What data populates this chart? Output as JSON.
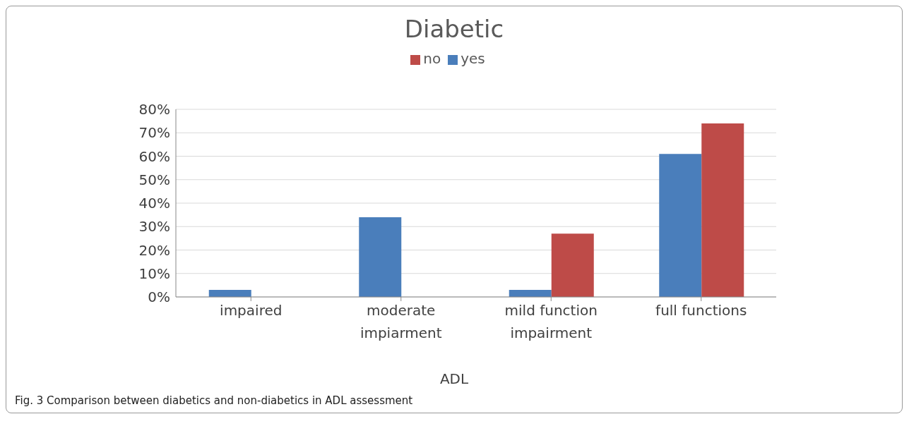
{
  "chart_data": {
    "type": "bar",
    "title": "Diabetic",
    "xlabel": "ADL",
    "categories": [
      "impaired",
      "moderate impiarment",
      "mild function impairment",
      "full functions"
    ],
    "series": [
      {
        "name": "yes",
        "color": "#4a7ebb",
        "values": [
          3,
          34,
          3,
          61
        ]
      },
      {
        "name": "no",
        "color": "#be4b48",
        "values": [
          0,
          0,
          27,
          74
        ]
      }
    ],
    "ylim": [
      0,
      80
    ],
    "yticks": [
      {
        "value": 0,
        "label": "0%"
      },
      {
        "value": 10,
        "label": "10%"
      },
      {
        "value": 20,
        "label": "20%"
      },
      {
        "value": 30,
        "label": "30%"
      },
      {
        "value": 40,
        "label": "40%"
      },
      {
        "value": 50,
        "label": "50%"
      },
      {
        "value": 60,
        "label": "60%"
      },
      {
        "value": 70,
        "label": "70%"
      },
      {
        "value": 80,
        "label": "80%"
      }
    ],
    "grid": "y",
    "legend": "top",
    "annotations": [
      "Fig. 3 Comparison between diabetics and non-diabetics in ADL assessment"
    ]
  }
}
